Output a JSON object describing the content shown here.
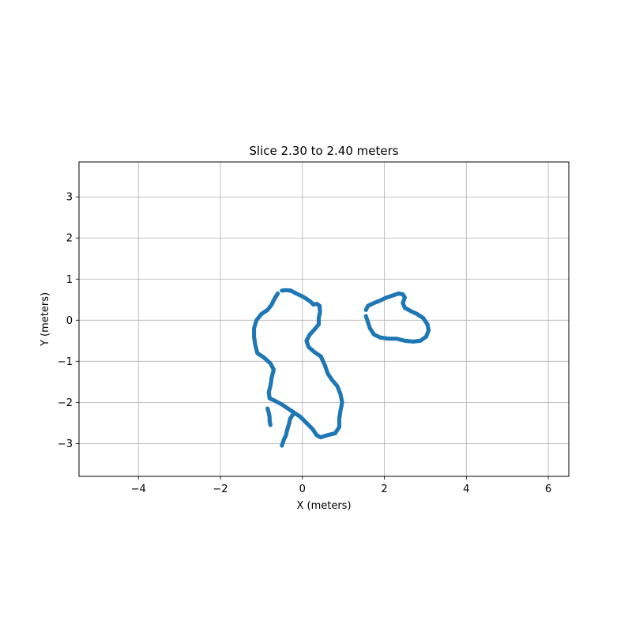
{
  "chart_data": {
    "type": "scatter",
    "title": "Slice 2.30 to 2.40 meters",
    "xlabel": "X (meters)",
    "ylabel": "Y (meters)",
    "xlim": [
      -5.45,
      6.5
    ],
    "ylim": [
      -3.8,
      3.85
    ],
    "xticks": [
      -4,
      -2,
      0,
      2,
      4,
      6
    ],
    "yticks": [
      -3,
      -2,
      -1,
      0,
      1,
      2,
      3
    ],
    "grid": true,
    "color": "#1f77b4",
    "series": [
      {
        "points": [
          [
            -0.5,
            0.72
          ],
          [
            -0.4,
            0.73
          ],
          [
            -0.28,
            0.72
          ],
          [
            -0.15,
            0.65
          ],
          [
            0.0,
            0.58
          ],
          [
            0.1,
            0.52
          ],
          [
            0.2,
            0.45
          ],
          [
            0.27,
            0.38
          ],
          [
            0.35,
            0.4
          ],
          [
            0.42,
            0.35
          ],
          [
            0.43,
            0.2
          ],
          [
            0.4,
            0.05
          ],
          [
            0.4,
            -0.1
          ],
          [
            0.3,
            -0.22
          ],
          [
            0.18,
            -0.35
          ],
          [
            0.1,
            -0.5
          ],
          [
            0.15,
            -0.65
          ],
          [
            0.3,
            -0.78
          ],
          [
            0.45,
            -0.88
          ],
          [
            0.55,
            -1.1
          ],
          [
            0.62,
            -1.3
          ],
          [
            0.72,
            -1.45
          ],
          [
            0.85,
            -1.6
          ],
          [
            0.93,
            -1.8
          ],
          [
            0.97,
            -2.0
          ],
          [
            0.93,
            -2.2
          ],
          [
            0.9,
            -2.4
          ],
          [
            0.9,
            -2.6
          ],
          [
            0.8,
            -2.75
          ],
          [
            0.6,
            -2.8
          ],
          [
            0.45,
            -2.85
          ],
          [
            0.35,
            -2.8
          ],
          [
            0.25,
            -2.65
          ],
          [
            0.1,
            -2.5
          ],
          [
            -0.05,
            -2.35
          ],
          [
            -0.2,
            -2.25
          ],
          [
            -0.35,
            -2.15
          ],
          [
            -0.5,
            -2.05
          ],
          [
            -0.65,
            -1.97
          ],
          [
            -0.8,
            -1.9
          ],
          [
            -0.82,
            -1.75
          ],
          [
            -0.78,
            -1.6
          ],
          [
            -0.75,
            -1.4
          ],
          [
            -0.7,
            -1.2
          ],
          [
            -0.78,
            -1.05
          ],
          [
            -0.95,
            -0.9
          ],
          [
            -1.1,
            -0.8
          ],
          [
            -1.15,
            -0.6
          ],
          [
            -1.18,
            -0.4
          ],
          [
            -1.18,
            -0.2
          ],
          [
            -1.12,
            0.0
          ],
          [
            -1.0,
            0.15
          ],
          [
            -0.85,
            0.25
          ],
          [
            -0.75,
            0.38
          ],
          [
            -0.68,
            0.52
          ],
          [
            -0.6,
            0.65
          ]
        ]
      },
      {
        "points": [
          [
            -0.85,
            -2.15
          ],
          [
            -0.82,
            -2.25
          ],
          [
            -0.8,
            -2.35
          ],
          [
            -0.8,
            -2.45
          ],
          [
            -0.78,
            -2.55
          ],
          [
            -0.5,
            -3.05
          ],
          [
            -0.45,
            -2.9
          ],
          [
            -0.4,
            -2.8
          ],
          [
            -0.38,
            -2.7
          ],
          [
            -0.35,
            -2.6
          ],
          [
            -0.32,
            -2.5
          ],
          [
            -0.3,
            -2.4
          ],
          [
            -0.25,
            -2.32
          ],
          [
            -0.2,
            -2.27
          ]
        ]
      },
      {
        "points": [
          [
            1.55,
            0.25
          ],
          [
            1.6,
            0.35
          ],
          [
            1.75,
            0.42
          ],
          [
            1.9,
            0.48
          ],
          [
            2.05,
            0.55
          ],
          [
            2.2,
            0.6
          ],
          [
            2.35,
            0.65
          ],
          [
            2.45,
            0.63
          ],
          [
            2.5,
            0.55
          ],
          [
            2.45,
            0.42
          ],
          [
            2.5,
            0.3
          ],
          [
            2.65,
            0.22
          ],
          [
            2.8,
            0.15
          ],
          [
            2.95,
            0.05
          ],
          [
            3.05,
            -0.1
          ],
          [
            3.08,
            -0.25
          ],
          [
            3.02,
            -0.4
          ],
          [
            2.88,
            -0.5
          ],
          [
            2.7,
            -0.52
          ],
          [
            2.5,
            -0.5
          ],
          [
            2.3,
            -0.45
          ],
          [
            2.1,
            -0.45
          ],
          [
            1.9,
            -0.42
          ],
          [
            1.75,
            -0.35
          ],
          [
            1.65,
            -0.2
          ],
          [
            1.6,
            -0.05
          ],
          [
            1.55,
            0.1
          ]
        ]
      }
    ]
  }
}
